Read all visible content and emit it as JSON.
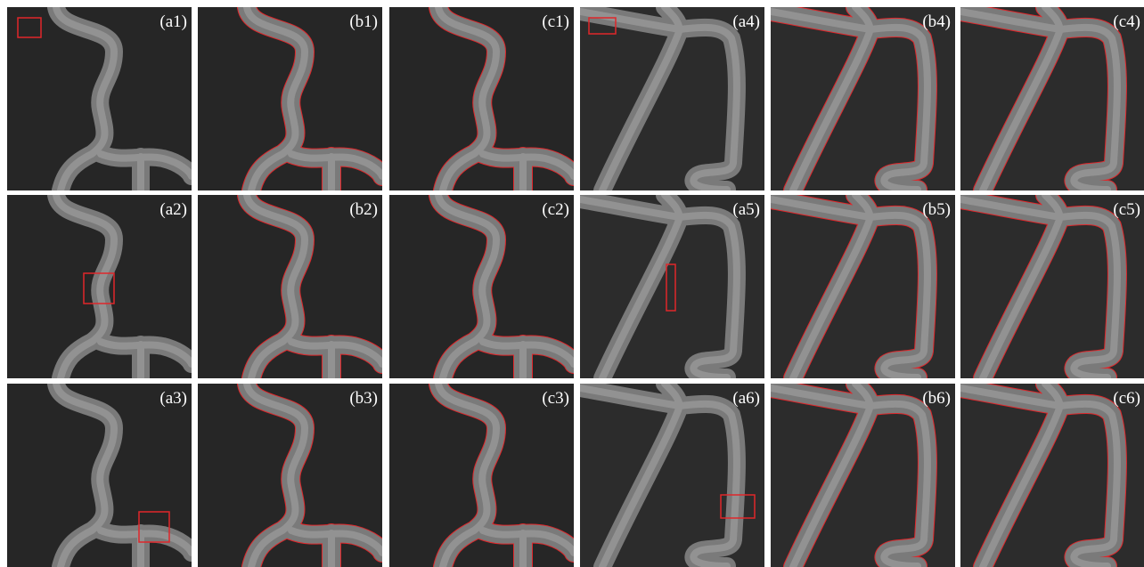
{
  "panels": [
    {
      "label": "(a1)"
    },
    {
      "label": "(b1)"
    },
    {
      "label": "(c1)"
    },
    {
      "label": "(a4)"
    },
    {
      "label": "(b4)"
    },
    {
      "label": "(c4)"
    },
    {
      "label": "(a2)"
    },
    {
      "label": "(b2)"
    },
    {
      "label": "(c2)"
    },
    {
      "label": "(a5)"
    },
    {
      "label": "(b5)"
    },
    {
      "label": "(c5)"
    },
    {
      "label": "(a3)"
    },
    {
      "label": "(b3)"
    },
    {
      "label": "(c3)"
    },
    {
      "label": "(a6)"
    },
    {
      "label": "(b6)"
    },
    {
      "label": "(c6)"
    }
  ]
}
